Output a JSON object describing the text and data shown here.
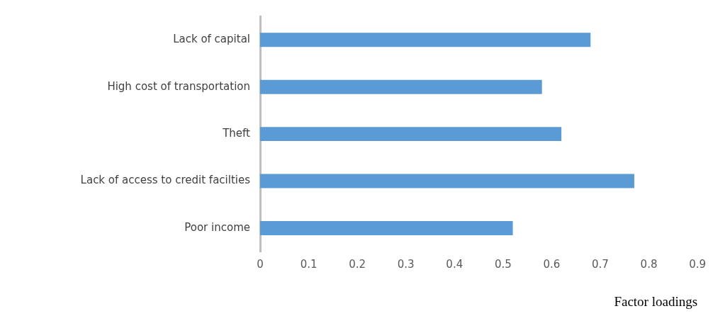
{
  "chart_data": {
    "type": "bar",
    "orientation": "horizontal",
    "xlabel": "Factor loadings",
    "categories": [
      "Lack of capital",
      "High cost of transportation",
      "Theft",
      "Lack of access to credit facilties",
      "Poor income"
    ],
    "values": [
      0.68,
      0.58,
      0.62,
      0.77,
      0.52
    ],
    "color": "#5b9bd5",
    "xlim": [
      0,
      0.9
    ],
    "xticks": [
      0,
      0.1,
      0.2,
      0.3,
      0.4,
      0.5,
      0.6,
      0.7,
      0.8,
      0.9
    ],
    "grid": false,
    "legend": false
  }
}
